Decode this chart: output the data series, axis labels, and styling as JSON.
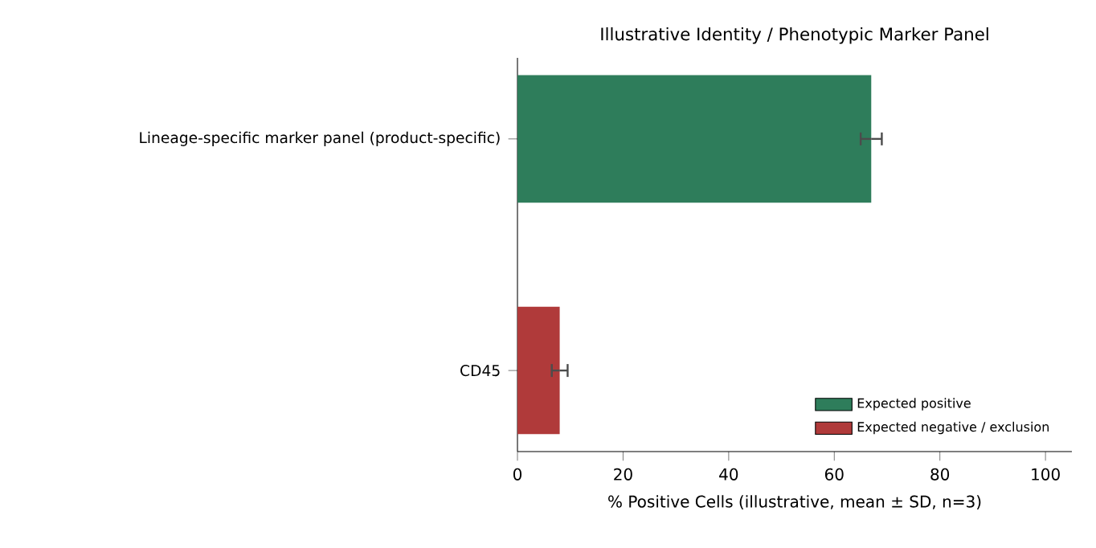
{
  "chart_data": {
    "type": "bar",
    "orientation": "horizontal",
    "title": "Illustrative Identity / Phenotypic Marker Panel",
    "xlabel": "% Positive Cells (illustrative, mean ± SD, n=3)",
    "categories": [
      "Lineage-specific marker panel (product-specific)",
      "CD45"
    ],
    "series": [
      {
        "name": "Expected positive",
        "color": "#2e7d5b",
        "values": [
          67,
          null
        ],
        "errors": [
          2,
          null
        ]
      },
      {
        "name": "Expected negative / exclusion",
        "color": "#b03a3a",
        "values": [
          null,
          8
        ],
        "errors": [
          null,
          1.5
        ]
      }
    ],
    "xlim": [
      0,
      105
    ],
    "xticks": [
      0,
      20,
      40,
      60,
      80,
      100
    ],
    "grid": false,
    "legend": "bottom right"
  }
}
